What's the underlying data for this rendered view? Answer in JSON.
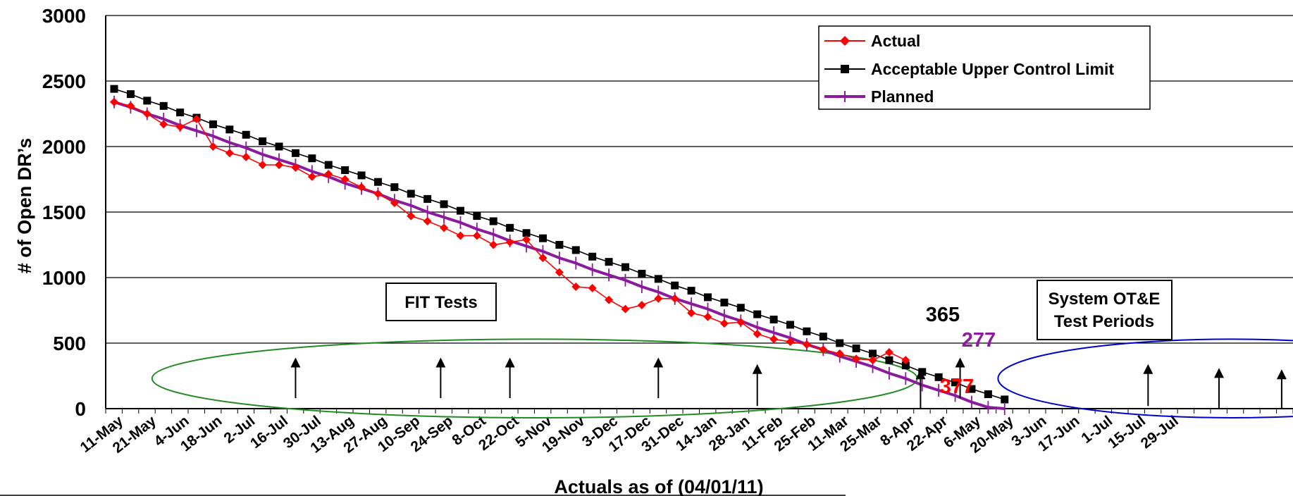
{
  "chart_data": {
    "type": "line",
    "xlabel": "Actuals as of  (04/01/11)",
    "ylabel": "# of Open DR’s",
    "ylim": [
      0,
      3000
    ],
    "yticks": [
      0,
      500,
      1000,
      1500,
      2000,
      2500,
      3000
    ],
    "grid": "horizontal",
    "legend_position": "top-right",
    "x_ticks": [
      "11-May",
      "21-May",
      "4-Jun",
      "18-Jun",
      "2-Jul",
      "16-Jul",
      "30-Jul",
      "13-Aug",
      "27-Aug",
      "10-Sep",
      "24-Sep",
      "8-Oct",
      "22-Oct",
      "5-Nov",
      "19-Nov",
      "3-Dec",
      "17-Dec",
      "31-Dec",
      "14-Jan",
      "28-Jan",
      "11-Feb",
      "25-Feb",
      "11-Mar",
      "25-Mar",
      "8-Apr",
      "22-Apr",
      "6-May",
      "20-May",
      "3-Jun",
      "17-Jun",
      "1-Jul",
      "15-Jul",
      "29-Jul"
    ],
    "series": [
      {
        "name": "Actual",
        "color": "#ff0000",
        "marker": "diamond",
        "values": [
          2340,
          2310,
          2250,
          2170,
          2150,
          2210,
          2000,
          1950,
          1920,
          1860,
          1860,
          1840,
          1770,
          1790,
          1750,
          1690,
          1640,
          1570,
          1470,
          1430,
          1380,
          1320,
          1320,
          1250,
          1270,
          1290,
          1150,
          1040,
          930,
          920,
          830,
          760,
          790,
          840,
          840,
          730,
          700,
          650,
          660,
          570,
          530,
          510,
          490,
          450,
          420,
          380,
          370,
          430,
          370
        ]
      },
      {
        "name": "Acceptable Upper Control Limit",
        "color": "#000000",
        "marker": "square",
        "values": [
          2440,
          2400,
          2350,
          2310,
          2260,
          2220,
          2170,
          2130,
          2090,
          2040,
          2000,
          1950,
          1910,
          1860,
          1820,
          1780,
          1730,
          1690,
          1640,
          1600,
          1560,
          1510,
          1470,
          1430,
          1380,
          1340,
          1300,
          1250,
          1210,
          1160,
          1120,
          1080,
          1030,
          990,
          940,
          900,
          850,
          810,
          770,
          720,
          680,
          640,
          590,
          550,
          500,
          460,
          420,
          370,
          330,
          280,
          240,
          200,
          150,
          110,
          70
        ]
      },
      {
        "name": "Planned",
        "color": "#8b1a9e",
        "marker": "plus",
        "values": [
          2340,
          2300,
          2250,
          2210,
          2160,
          2120,
          2080,
          2030,
          1990,
          1940,
          1900,
          1860,
          1810,
          1770,
          1720,
          1680,
          1640,
          1590,
          1550,
          1500,
          1460,
          1420,
          1370,
          1330,
          1280,
          1240,
          1200,
          1150,
          1110,
          1060,
          1020,
          980,
          930,
          890,
          840,
          800,
          760,
          710,
          670,
          620,
          580,
          540,
          490,
          450,
          400,
          360,
          320,
          270,
          230,
          180,
          140,
          100,
          50,
          10,
          0
        ]
      }
    ],
    "arrows": [
      11,
      19.8,
      24,
      33,
      39,
      48.9,
      51.3,
      62.7,
      67,
      70.8,
      72.7
    ],
    "arrow_tops": [
      390,
      390,
      390,
      390,
      340,
      300,
      390,
      340,
      310,
      300,
      420
    ],
    "arrow_bases": [
      80,
      80,
      80,
      80,
      20,
      0,
      80,
      20,
      0,
      0,
      180
    ],
    "ellipses": [
      {
        "name": "fit-tests-ellipse",
        "color": "#228b22",
        "x_center": 25.5,
        "y_center": 230,
        "x_radius": 23.2,
        "y_radius": 300
      },
      {
        "name": "ot-e-ellipse",
        "color": "#0000cc",
        "x_center": 67.8,
        "y_center": 230,
        "x_radius": 14.2,
        "y_radius": 300
      }
    ],
    "annotations": {
      "fit_tests_label": "FIT Tests",
      "ote_label_line1": "System OT&E",
      "ote_label_line2": "Test Periods",
      "value_ucl": "365",
      "value_planned": "277",
      "value_actual": "377"
    },
    "annotation_colors": {
      "value_ucl": "#000000",
      "value_planned": "#8b1a9e",
      "value_actual": "#ff0000"
    }
  }
}
